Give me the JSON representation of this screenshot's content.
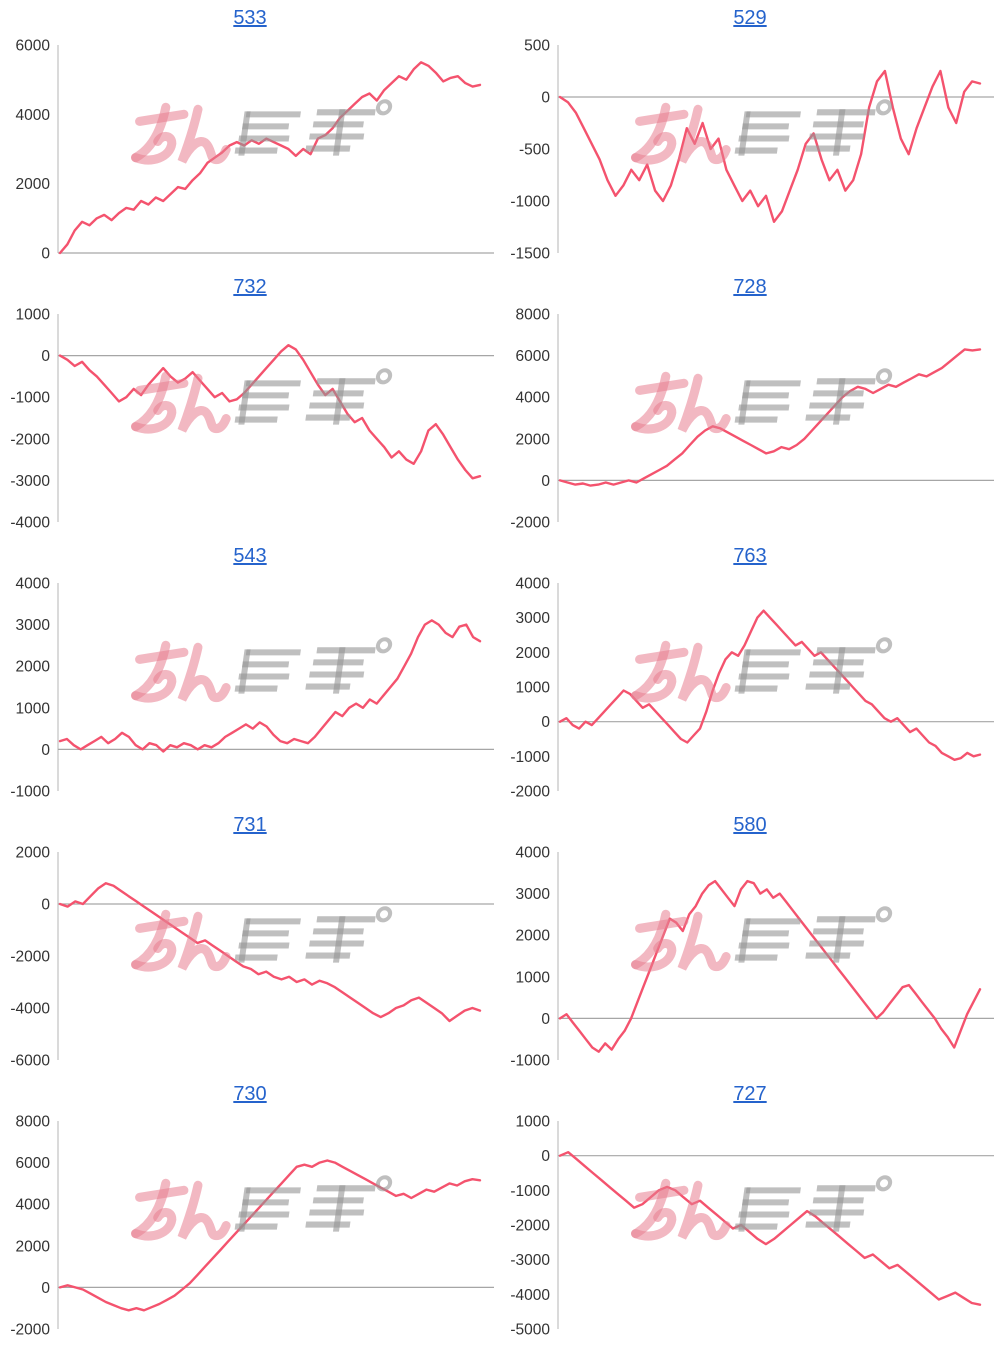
{
  "page": {
    "background": "#ffffff"
  },
  "watermark": {
    "text_pink": "みん",
    "text_gray": "レポ"
  },
  "style": {
    "line_color": "#f4536e",
    "title_color": "#2563cc",
    "axis_color": "#c2c2c2",
    "zero_line_color": "#a6a6a6",
    "tick_color": "#333333",
    "watermark_pink": "rgba(232,126,144,0.55)",
    "watermark_gray": "rgba(148,148,148,0.6)"
  },
  "layout_hints": {
    "grid": "zero-line-only",
    "legend": "none",
    "x_axis_labels": "hidden",
    "columns": 2,
    "rows": 5
  },
  "chart_data": [
    {
      "type": "line",
      "title": "533",
      "xlabel": "",
      "ylabel": "",
      "ylim": [
        0,
        6000
      ],
      "yticks": [
        6000,
        4000,
        2000,
        0
      ],
      "values": [
        0,
        250,
        650,
        900,
        800,
        1000,
        1100,
        950,
        1150,
        1300,
        1250,
        1500,
        1400,
        1600,
        1500,
        1700,
        1900,
        1850,
        2100,
        2300,
        2600,
        2750,
        2900,
        3100,
        3200,
        3100,
        3250,
        3150,
        3300,
        3200,
        3100,
        3000,
        2800,
        3000,
        2850,
        3300,
        3400,
        3600,
        3900,
        4100,
        4300,
        4500,
        4600,
        4400,
        4700,
        4900,
        5100,
        5000,
        5300,
        5500,
        5400,
        5200,
        4950,
        5050,
        5100,
        4900,
        4800,
        4850
      ]
    },
    {
      "type": "line",
      "title": "529",
      "xlabel": "",
      "ylabel": "",
      "ylim": [
        -1500,
        500
      ],
      "yticks": [
        500,
        0,
        -500,
        -1000,
        -1500
      ],
      "values": [
        0,
        -50,
        -150,
        -300,
        -450,
        -600,
        -800,
        -950,
        -850,
        -700,
        -800,
        -650,
        -900,
        -1000,
        -850,
        -600,
        -300,
        -450,
        -250,
        -500,
        -400,
        -700,
        -850,
        -1000,
        -900,
        -1050,
        -950,
        -1200,
        -1100,
        -900,
        -700,
        -450,
        -350,
        -600,
        -800,
        -700,
        -900,
        -800,
        -550,
        -100,
        150,
        250,
        -100,
        -400,
        -550,
        -300,
        -100,
        100,
        250,
        -100,
        -250,
        50,
        150,
        130
      ]
    },
    {
      "type": "line",
      "title": "732",
      "xlabel": "",
      "ylabel": "",
      "ylim": [
        -4000,
        1000
      ],
      "yticks": [
        1000,
        0,
        -1000,
        -2000,
        -3000,
        -4000
      ],
      "values": [
        0,
        -100,
        -250,
        -150,
        -350,
        -500,
        -700,
        -900,
        -1100,
        -1000,
        -800,
        -950,
        -700,
        -500,
        -300,
        -500,
        -650,
        -550,
        -400,
        -600,
        -800,
        -1000,
        -900,
        -1100,
        -1050,
        -900,
        -700,
        -500,
        -300,
        -100,
        100,
        250,
        150,
        -100,
        -400,
        -700,
        -950,
        -800,
        -1100,
        -1400,
        -1600,
        -1500,
        -1800,
        -2000,
        -2200,
        -2450,
        -2300,
        -2500,
        -2600,
        -2300,
        -1800,
        -1650,
        -1900,
        -2200,
        -2500,
        -2750,
        -2950,
        -2900
      ]
    },
    {
      "type": "line",
      "title": "728",
      "xlabel": "",
      "ylabel": "",
      "ylim": [
        -2000,
        8000
      ],
      "yticks": [
        8000,
        6000,
        4000,
        2000,
        0,
        -2000
      ],
      "values": [
        0,
        -100,
        -200,
        -150,
        -250,
        -200,
        -100,
        -200,
        -100,
        0,
        -100,
        100,
        300,
        500,
        700,
        1000,
        1300,
        1700,
        2100,
        2400,
        2600,
        2500,
        2300,
        2100,
        1900,
        1700,
        1500,
        1300,
        1400,
        1600,
        1500,
        1700,
        2000,
        2400,
        2800,
        3200,
        3600,
        4000,
        4300,
        4500,
        4400,
        4200,
        4400,
        4600,
        4500,
        4700,
        4900,
        5100,
        5000,
        5200,
        5400,
        5700,
        6000,
        6300,
        6250,
        6300
      ]
    },
    {
      "type": "line",
      "title": "543",
      "xlabel": "",
      "ylabel": "",
      "ylim": [
        -1000,
        4000
      ],
      "yticks": [
        4000,
        3000,
        2000,
        1000,
        0,
        -1000
      ],
      "values": [
        200,
        250,
        100,
        0,
        100,
        200,
        300,
        150,
        250,
        400,
        300,
        100,
        0,
        150,
        100,
        -50,
        100,
        50,
        150,
        100,
        0,
        100,
        50,
        150,
        300,
        400,
        500,
        600,
        500,
        650,
        550,
        350,
        200,
        150,
        250,
        200,
        150,
        300,
        500,
        700,
        900,
        800,
        1000,
        1100,
        1000,
        1200,
        1100,
        1300,
        1500,
        1700,
        2000,
        2300,
        2700,
        3000,
        3100,
        3000,
        2800,
        2700,
        2950,
        3000,
        2700,
        2600
      ]
    },
    {
      "type": "line",
      "title": "763",
      "xlabel": "",
      "ylabel": "",
      "ylim": [
        -2000,
        4000
      ],
      "yticks": [
        4000,
        3000,
        2000,
        1000,
        0,
        -1000,
        -2000
      ],
      "values": [
        0,
        100,
        -100,
        -200,
        0,
        -100,
        100,
        300,
        500,
        700,
        900,
        800,
        600,
        400,
        500,
        300,
        100,
        -100,
        -300,
        -500,
        -600,
        -400,
        -200,
        300,
        900,
        1400,
        1800,
        2000,
        1900,
        2200,
        2600,
        3000,
        3200,
        3000,
        2800,
        2600,
        2400,
        2200,
        2300,
        2100,
        1900,
        2000,
        1800,
        1600,
        1400,
        1200,
        1000,
        800,
        600,
        500,
        300,
        100,
        0,
        100,
        -100,
        -300,
        -200,
        -400,
        -600,
        -700,
        -900,
        -1000,
        -1100,
        -1050,
        -900,
        -1000,
        -950
      ]
    },
    {
      "type": "line",
      "title": "731",
      "xlabel": "",
      "ylabel": "",
      "ylim": [
        -6000,
        2000
      ],
      "yticks": [
        2000,
        0,
        -2000,
        -4000,
        -6000
      ],
      "values": [
        0,
        -100,
        100,
        0,
        300,
        600,
        800,
        700,
        500,
        300,
        100,
        -100,
        -300,
        -500,
        -700,
        -900,
        -1100,
        -1300,
        -1500,
        -1400,
        -1600,
        -1800,
        -2000,
        -2200,
        -2400,
        -2500,
        -2700,
        -2600,
        -2800,
        -2900,
        -2800,
        -3000,
        -2900,
        -3100,
        -2950,
        -3050,
        -3200,
        -3400,
        -3600,
        -3800,
        -4000,
        -4200,
        -4350,
        -4200,
        -4000,
        -3900,
        -3700,
        -3600,
        -3800,
        -4000,
        -4200,
        -4500,
        -4300,
        -4100,
        -4000,
        -4100
      ]
    },
    {
      "type": "line",
      "title": "580",
      "xlabel": "",
      "ylabel": "",
      "ylim": [
        -1000,
        4000
      ],
      "yticks": [
        4000,
        3000,
        2000,
        1000,
        0,
        -1000
      ],
      "values": [
        0,
        100,
        -100,
        -300,
        -500,
        -700,
        -800,
        -600,
        -750,
        -500,
        -300,
        0,
        400,
        800,
        1200,
        1600,
        2000,
        2400,
        2300,
        2100,
        2500,
        2700,
        3000,
        3200,
        3300,
        3100,
        2900,
        2700,
        3100,
        3300,
        3250,
        3000,
        3100,
        2900,
        3000,
        2800,
        2600,
        2400,
        2200,
        2000,
        1800,
        1600,
        1400,
        1200,
        1000,
        800,
        600,
        400,
        200,
        0,
        150,
        350,
        550,
        750,
        800,
        600,
        400,
        200,
        0,
        -250,
        -450,
        -700,
        -300,
        100,
        400,
        700
      ]
    },
    {
      "type": "line",
      "title": "730",
      "xlabel": "",
      "ylabel": "",
      "ylim": [
        -2000,
        8000
      ],
      "yticks": [
        8000,
        6000,
        4000,
        2000,
        0,
        -2000
      ],
      "values": [
        0,
        100,
        0,
        -100,
        -300,
        -500,
        -700,
        -850,
        -1000,
        -1100,
        -1000,
        -1100,
        -950,
        -800,
        -600,
        -400,
        -100,
        200,
        600,
        1000,
        1400,
        1800,
        2200,
        2600,
        3000,
        3400,
        3800,
        4200,
        4600,
        5000,
        5400,
        5800,
        5900,
        5800,
        6000,
        6100,
        6000,
        5800,
        5600,
        5400,
        5200,
        5000,
        4800,
        4600,
        4400,
        4500,
        4300,
        4500,
        4700,
        4600,
        4800,
        5000,
        4900,
        5100,
        5200,
        5150
      ]
    },
    {
      "type": "line",
      "title": "727",
      "xlabel": "",
      "ylabel": "",
      "ylim": [
        -5000,
        1000
      ],
      "yticks": [
        1000,
        0,
        -1000,
        -2000,
        -3000,
        -4000,
        -5000
      ],
      "values": [
        0,
        100,
        -100,
        -300,
        -500,
        -700,
        -900,
        -1100,
        -1300,
        -1500,
        -1400,
        -1200,
        -1000,
        -900,
        -1000,
        -1200,
        -1400,
        -1300,
        -1500,
        -1700,
        -1900,
        -2100,
        -2000,
        -2200,
        -2400,
        -2550,
        -2400,
        -2200,
        -2000,
        -1800,
        -1600,
        -1750,
        -1950,
        -2150,
        -2350,
        -2550,
        -2750,
        -2950,
        -2850,
        -3050,
        -3250,
        -3150,
        -3350,
        -3550,
        -3750,
        -3950,
        -4150,
        -4050,
        -3950,
        -4100,
        -4250,
        -4300
      ]
    }
  ]
}
